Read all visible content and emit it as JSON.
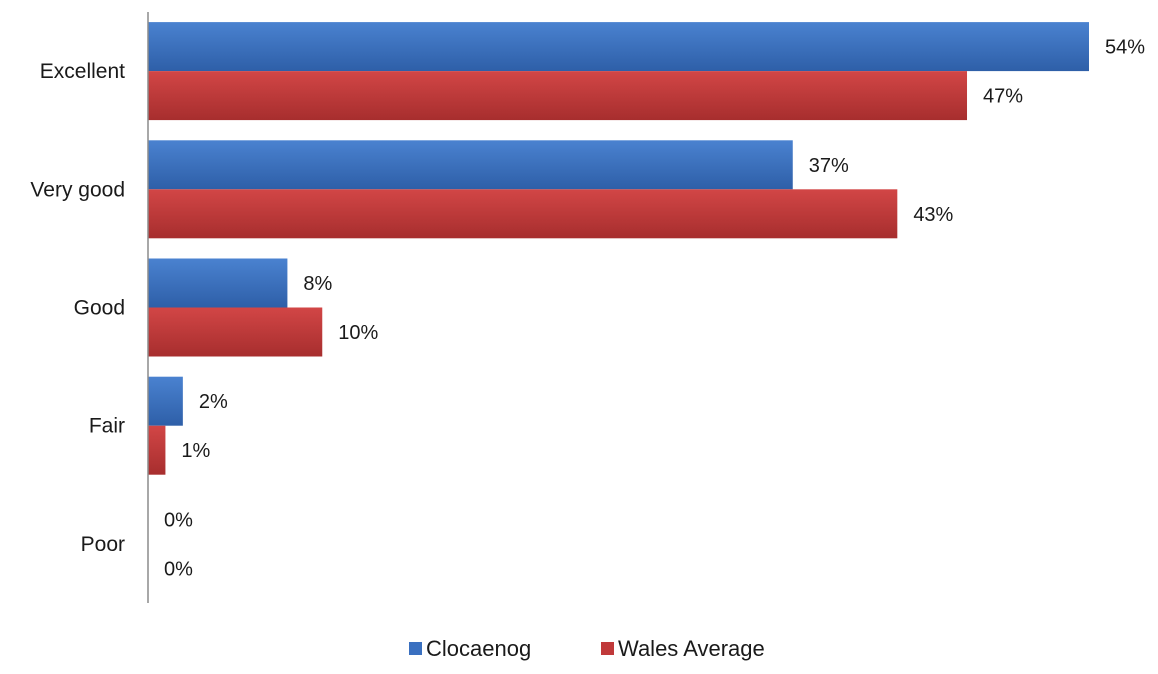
{
  "chart_data": {
    "type": "bar",
    "orientation": "horizontal",
    "categories": [
      "Excellent",
      "Very good",
      "Good",
      "Fair",
      "Poor"
    ],
    "series": [
      {
        "name": "Clocaenog",
        "color": "#3a70c0",
        "values": [
          54,
          37,
          8,
          2,
          0
        ],
        "labels": [
          "54%",
          "37%",
          "8%",
          "2%",
          "0%"
        ]
      },
      {
        "name": "Wales Average",
        "color": "#c0393a",
        "values": [
          47,
          43,
          10,
          1,
          0
        ],
        "labels": [
          "47%",
          "43%",
          "10%",
          "1%",
          "0%"
        ]
      }
    ],
    "xlim": [
      0,
      54
    ],
    "grid": false,
    "legend": "bottom"
  }
}
